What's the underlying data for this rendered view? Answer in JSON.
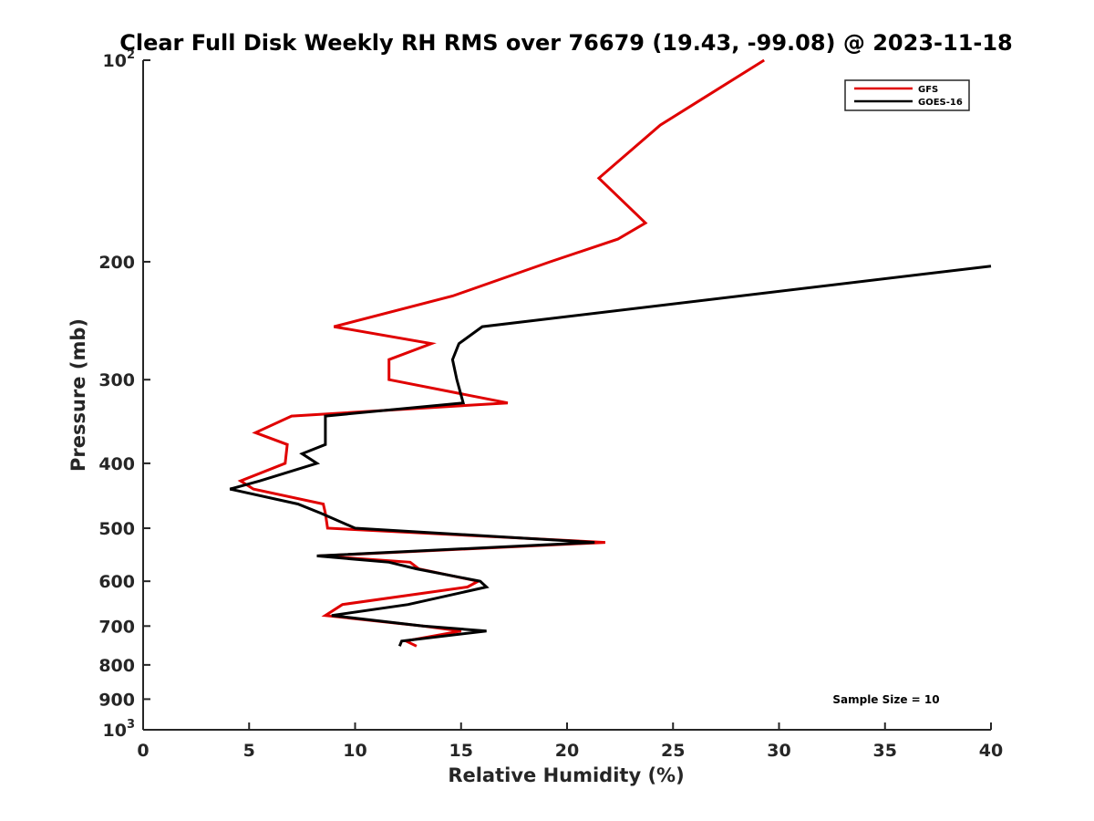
{
  "chart_data": {
    "type": "line",
    "title": "Clear Full Disk Weekly RH RMS over 76679 (19.43, -99.08) @ 2023-11-18",
    "xlabel": "Relative Humidity (%)",
    "ylabel": "Pressure (mb)",
    "xlim": [
      0,
      40
    ],
    "ylim": [
      100,
      1000
    ],
    "yscale": "log",
    "y_reversed": true,
    "grid": false,
    "legend_position": "top-right",
    "x_ticks": [
      "0",
      "5",
      "10",
      "15",
      "20",
      "25",
      "30",
      "35",
      "40"
    ],
    "y_ticks": [
      {
        "value": 100,
        "base": "10",
        "exp": "2"
      },
      {
        "value": 200,
        "label": "200"
      },
      {
        "value": 300,
        "label": "300"
      },
      {
        "value": 400,
        "label": "400"
      },
      {
        "value": 500,
        "label": "500"
      },
      {
        "value": 600,
        "label": "600"
      },
      {
        "value": 700,
        "label": "700"
      },
      {
        "value": 800,
        "label": "800"
      },
      {
        "value": 900,
        "label": "900"
      },
      {
        "value": 1000,
        "base": "10",
        "exp": "3"
      }
    ],
    "annotation": "Sample Size = 10",
    "series": [
      {
        "name": "GFS",
        "color": "#e00000",
        "points": [
          [
            29.3,
            100
          ],
          [
            24.4,
            125
          ],
          [
            21.5,
            150
          ],
          [
            23.7,
            175
          ],
          [
            22.4,
            185
          ],
          [
            19.2,
            200
          ],
          [
            14.6,
            225
          ],
          [
            9.0,
            250
          ],
          [
            13.6,
            265
          ],
          [
            11.6,
            280
          ],
          [
            11.6,
            300
          ],
          [
            17.2,
            325
          ],
          [
            7.0,
            340
          ],
          [
            5.3,
            360
          ],
          [
            6.8,
            375
          ],
          [
            6.7,
            400
          ],
          [
            4.6,
            425
          ],
          [
            5.2,
            437
          ],
          [
            8.5,
            460
          ],
          [
            8.6,
            475
          ],
          [
            8.7,
            500
          ],
          [
            21.8,
            525
          ],
          [
            8.3,
            550
          ],
          [
            12.6,
            562
          ],
          [
            13.0,
            575
          ],
          [
            15.8,
            600
          ],
          [
            15.3,
            612
          ],
          [
            9.4,
            650
          ],
          [
            8.6,
            675
          ],
          [
            13.2,
            700
          ],
          [
            15.0,
            712
          ],
          [
            12.4,
            737
          ],
          [
            12.9,
            750
          ]
        ]
      },
      {
        "name": "GOES-16",
        "color": "#000000",
        "points": [
          [
            40.0,
            203
          ],
          [
            16.0,
            250
          ],
          [
            14.9,
            265
          ],
          [
            14.6,
            280
          ],
          [
            14.8,
            300
          ],
          [
            15.1,
            325
          ],
          [
            8.6,
            340
          ],
          [
            8.6,
            375
          ],
          [
            7.5,
            387
          ],
          [
            8.2,
            400
          ],
          [
            5.5,
            425
          ],
          [
            4.1,
            437
          ],
          [
            7.3,
            460
          ],
          [
            8.4,
            475
          ],
          [
            10.0,
            500
          ],
          [
            21.3,
            525
          ],
          [
            8.2,
            550
          ],
          [
            11.6,
            562
          ],
          [
            12.9,
            575
          ],
          [
            15.9,
            600
          ],
          [
            16.2,
            612
          ],
          [
            12.5,
            650
          ],
          [
            8.9,
            675
          ],
          [
            13.2,
            700
          ],
          [
            16.2,
            712
          ],
          [
            12.2,
            737
          ],
          [
            12.1,
            750
          ]
        ]
      }
    ]
  }
}
